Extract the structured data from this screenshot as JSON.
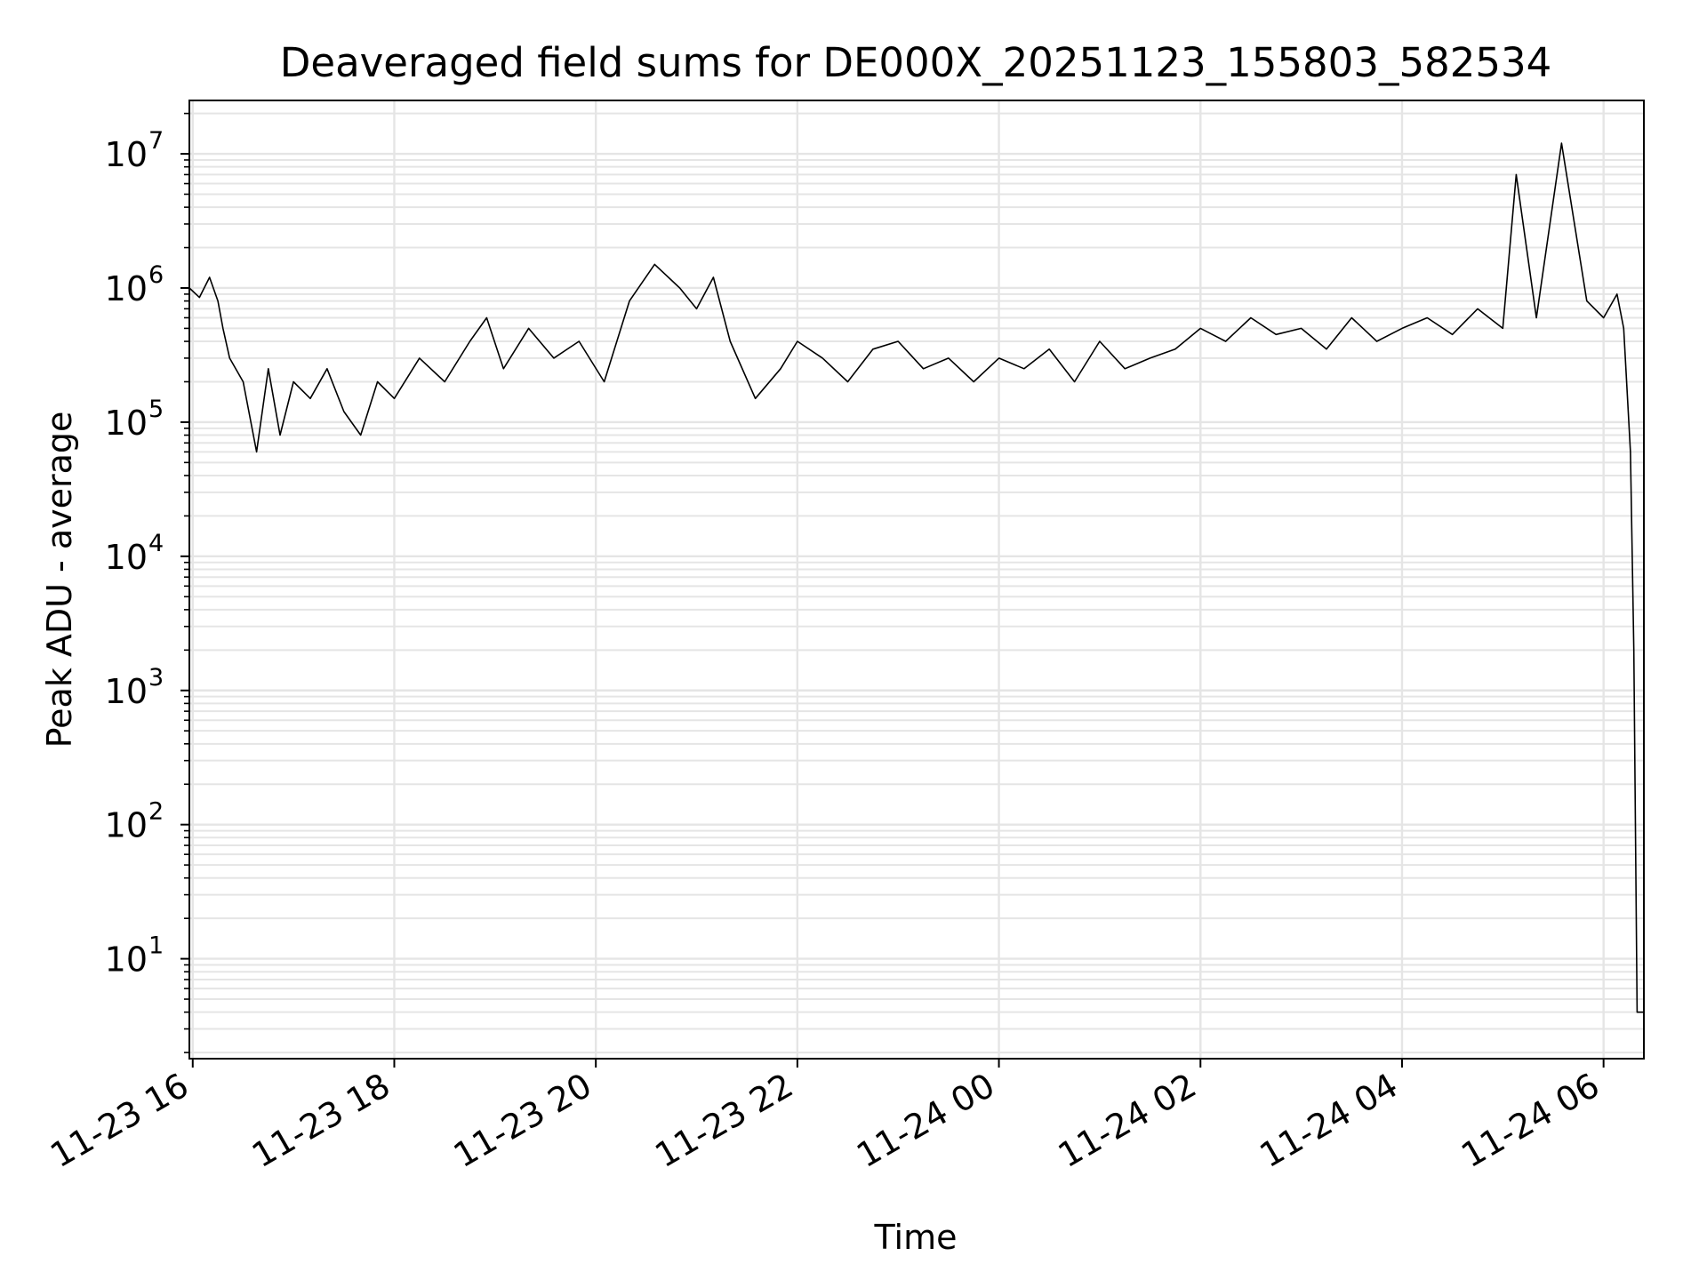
{
  "chart_data": {
    "type": "line",
    "title": "Deaveraged field sums for DE000X_20251123_155803_582534",
    "xlabel": "Time",
    "ylabel": "Peak ADU - average",
    "yscale": "log",
    "grid": true,
    "legend": "none",
    "colors": {
      "line": "#000000",
      "grid": "#e5e5e5",
      "axes": "#000000",
      "background": "#ffffff"
    },
    "xlim": [
      "2025-11-23 15:58",
      "2025-11-24 06:24"
    ],
    "ylim": [
      1.8,
      25000000
    ],
    "x_ticks": [
      {
        "label": "11-23 16",
        "value": "2025-11-23 16:00"
      },
      {
        "label": "11-23 18",
        "value": "2025-11-23 18:00"
      },
      {
        "label": "11-23 20",
        "value": "2025-11-23 20:00"
      },
      {
        "label": "11-23 22",
        "value": "2025-11-23 22:00"
      },
      {
        "label": "11-24 00",
        "value": "2025-11-24 00:00"
      },
      {
        "label": "11-24 02",
        "value": "2025-11-24 02:00"
      },
      {
        "label": "11-24 04",
        "value": "2025-11-24 04:00"
      },
      {
        "label": "11-24 06",
        "value": "2025-11-24 06:00"
      }
    ],
    "y_ticks": [
      {
        "base": "10",
        "exp": "1",
        "value": 10
      },
      {
        "base": "10",
        "exp": "2",
        "value": 100
      },
      {
        "base": "10",
        "exp": "3",
        "value": 1000
      },
      {
        "base": "10",
        "exp": "4",
        "value": 10000
      },
      {
        "base": "10",
        "exp": "5",
        "value": 100000
      },
      {
        "base": "10",
        "exp": "6",
        "value": 1000000
      },
      {
        "base": "10",
        "exp": "7",
        "value": 10000000
      }
    ],
    "series": [
      {
        "x": [
          "2025-11-23 15:58",
          "2025-11-23 16:04",
          "2025-11-23 16:10",
          "2025-11-23 16:15",
          "2025-11-23 16:18",
          "2025-11-23 16:22",
          "2025-11-23 16:30",
          "2025-11-23 16:38",
          "2025-11-23 16:45",
          "2025-11-23 16:52",
          "2025-11-23 17:00",
          "2025-11-23 17:10",
          "2025-11-23 17:20",
          "2025-11-23 17:30",
          "2025-11-23 17:40",
          "2025-11-23 17:50",
          "2025-11-23 18:00",
          "2025-11-23 18:15",
          "2025-11-23 18:30",
          "2025-11-23 18:45",
          "2025-11-23 18:55",
          "2025-11-23 19:05",
          "2025-11-23 19:20",
          "2025-11-23 19:35",
          "2025-11-23 19:50",
          "2025-11-23 20:05",
          "2025-11-23 20:20",
          "2025-11-23 20:35",
          "2025-11-23 20:50",
          "2025-11-23 21:00",
          "2025-11-23 21:10",
          "2025-11-23 21:20",
          "2025-11-23 21:35",
          "2025-11-23 21:50",
          "2025-11-23 22:00",
          "2025-11-23 22:15",
          "2025-11-23 22:30",
          "2025-11-23 22:45",
          "2025-11-23 23:00",
          "2025-11-23 23:15",
          "2025-11-23 23:30",
          "2025-11-23 23:45",
          "2025-11-24 00:00",
          "2025-11-24 00:15",
          "2025-11-24 00:30",
          "2025-11-24 00:45",
          "2025-11-24 01:00",
          "2025-11-24 01:15",
          "2025-11-24 01:30",
          "2025-11-24 01:45",
          "2025-11-24 02:00",
          "2025-11-24 02:15",
          "2025-11-24 02:30",
          "2025-11-24 02:45",
          "2025-11-24 03:00",
          "2025-11-24 03:15",
          "2025-11-24 03:30",
          "2025-11-24 03:45",
          "2025-11-24 04:00",
          "2025-11-24 04:15",
          "2025-11-24 04:30",
          "2025-11-24 04:45",
          "2025-11-24 05:00",
          "2025-11-24 05:08",
          "2025-11-24 05:20",
          "2025-11-24 05:35",
          "2025-11-24 05:50",
          "2025-11-24 06:00",
          "2025-11-24 06:08",
          "2025-11-24 06:12",
          "2025-11-24 06:16",
          "2025-11-24 06:18",
          "2025-11-24 06:20",
          "2025-11-24 06:24"
        ],
        "values": [
          1000000,
          850000,
          1200000,
          800000,
          500000,
          300000,
          200000,
          60000,
          250000,
          80000,
          200000,
          150000,
          250000,
          120000,
          80000,
          200000,
          150000,
          300000,
          200000,
          400000,
          600000,
          250000,
          500000,
          300000,
          400000,
          200000,
          800000,
          1500000,
          1000000,
          700000,
          1200000,
          400000,
          150000,
          250000,
          400000,
          300000,
          200000,
          350000,
          400000,
          250000,
          300000,
          200000,
          300000,
          250000,
          350000,
          200000,
          400000,
          250000,
          300000,
          350000,
          500000,
          400000,
          600000,
          450000,
          500000,
          350000,
          600000,
          400000,
          500000,
          600000,
          450000,
          700000,
          500000,
          7000000,
          600000,
          12000000,
          800000,
          600000,
          900000,
          500000,
          60000,
          2000,
          4,
          4
        ]
      }
    ]
  }
}
